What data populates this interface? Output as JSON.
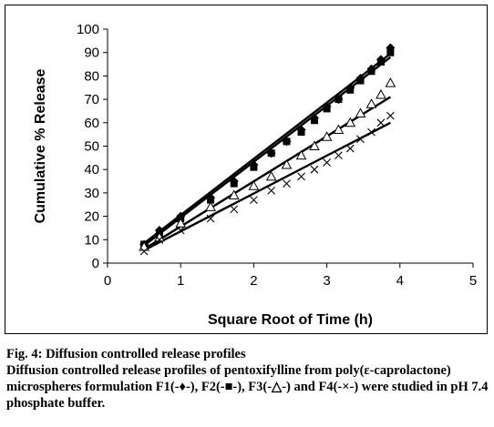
{
  "chart_data": {
    "type": "scatter",
    "title": "",
    "xlabel": "Square Root of Time (h)",
    "ylabel": "Cumulative % Release",
    "xlim": [
      0,
      5
    ],
    "ylim": [
      0,
      100
    ],
    "xticks": [
      0,
      1,
      2,
      3,
      4,
      5
    ],
    "yticks": [
      0,
      10,
      20,
      30,
      40,
      50,
      60,
      70,
      80,
      90,
      100
    ],
    "grid": false,
    "legend": "none",
    "series": [
      {
        "marker": "diamond",
        "points": [
          [
            0.5,
            8
          ],
          [
            0.71,
            14
          ],
          [
            1.0,
            20
          ],
          [
            1.41,
            28
          ],
          [
            1.73,
            35
          ],
          [
            2.0,
            42
          ],
          [
            2.24,
            47
          ],
          [
            2.45,
            52
          ],
          [
            2.65,
            57
          ],
          [
            2.83,
            62
          ],
          [
            3.0,
            67
          ],
          [
            3.16,
            70
          ],
          [
            3.32,
            75
          ],
          [
            3.46,
            79
          ],
          [
            3.61,
            83
          ],
          [
            3.74,
            87
          ],
          [
            3.87,
            92
          ]
        ],
        "fit": [
          [
            0.5,
            8.5
          ],
          [
            3.87,
            89.5
          ]
        ]
      },
      {
        "marker": "square",
        "points": [
          [
            0.5,
            8
          ],
          [
            0.71,
            13
          ],
          [
            1.0,
            19
          ],
          [
            1.41,
            27
          ],
          [
            1.73,
            34
          ],
          [
            2.0,
            41
          ],
          [
            2.24,
            47
          ],
          [
            2.45,
            52
          ],
          [
            2.65,
            56
          ],
          [
            2.83,
            61
          ],
          [
            3.0,
            66
          ],
          [
            3.16,
            70
          ],
          [
            3.32,
            74
          ],
          [
            3.46,
            78
          ],
          [
            3.61,
            82
          ],
          [
            3.74,
            86
          ],
          [
            3.87,
            90
          ]
        ],
        "fit": [
          [
            0.5,
            7.5
          ],
          [
            3.87,
            88
          ]
        ]
      },
      {
        "marker": "triangle",
        "points": [
          [
            0.5,
            7
          ],
          [
            0.71,
            11
          ],
          [
            1.0,
            17
          ],
          [
            1.41,
            24
          ],
          [
            1.73,
            29
          ],
          [
            2.0,
            33
          ],
          [
            2.24,
            37
          ],
          [
            2.45,
            42
          ],
          [
            2.65,
            46
          ],
          [
            2.83,
            50
          ],
          [
            3.0,
            54
          ],
          [
            3.16,
            57
          ],
          [
            3.32,
            60
          ],
          [
            3.46,
            64
          ],
          [
            3.61,
            68
          ],
          [
            3.74,
            72
          ],
          [
            3.87,
            77
          ]
        ],
        "fit": [
          [
            0.5,
            6
          ],
          [
            3.87,
            71
          ]
        ]
      },
      {
        "marker": "x",
        "points": [
          [
            0.5,
            5
          ],
          [
            0.71,
            10
          ],
          [
            1.0,
            14
          ],
          [
            1.41,
            19
          ],
          [
            1.73,
            23
          ],
          [
            2.0,
            27
          ],
          [
            2.24,
            31
          ],
          [
            2.45,
            34
          ],
          [
            2.65,
            37
          ],
          [
            2.83,
            40
          ],
          [
            3.0,
            43
          ],
          [
            3.16,
            46
          ],
          [
            3.32,
            49
          ],
          [
            3.46,
            53
          ],
          [
            3.61,
            56
          ],
          [
            3.74,
            60
          ],
          [
            3.87,
            63
          ]
        ],
        "fit": [
          [
            0.5,
            5.5
          ],
          [
            3.87,
            60
          ]
        ]
      }
    ]
  },
  "caption": {
    "title": "Fig. 4: Diffusion controlled release profiles",
    "description": "Diffusion controlled release profiles of pentoxifylline from poly(ε-caprolactone) microspheres formulation F1(-♦-), F2(-■-), F3(-△-) and F4(-×-) were studied in pH 7.4 phosphate buffer."
  }
}
